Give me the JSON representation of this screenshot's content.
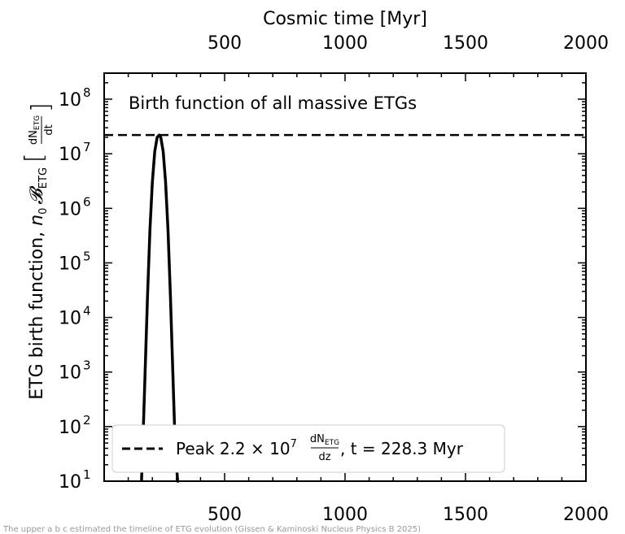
{
  "chart_data": {
    "type": "line",
    "title": "Birth function of all massive ETGs",
    "xlabel_top": "Cosmic time [Myr]",
    "ylabel": "ETG birth function, n₀ 𝓑ETG [dNETG/dt]",
    "ylabel_parts": {
      "main": "ETG birth function, ",
      "n": "n",
      "n_sub": "0",
      "B": "𝓑",
      "B_sub": "ETG",
      "frac_num": "dN",
      "frac_num_sub": "ETG",
      "frac_den": "dt"
    },
    "xlim": [
      0,
      2000
    ],
    "x_ticks": [
      "500",
      "1000",
      "1500",
      "2000"
    ],
    "x_tick_values": [
      500,
      1000,
      1500,
      2000
    ],
    "ylim": [
      10,
      300000000
    ],
    "yscale": "log",
    "y_ticks": [
      {
        "base": "10",
        "exp": "1",
        "value": 10
      },
      {
        "base": "10",
        "exp": "2",
        "value": 100
      },
      {
        "base": "10",
        "exp": "3",
        "value": 1000
      },
      {
        "base": "10",
        "exp": "4",
        "value": 10000
      },
      {
        "base": "10",
        "exp": "5",
        "value": 100000
      },
      {
        "base": "10",
        "exp": "6",
        "value": 1000000
      },
      {
        "base": "10",
        "exp": "7",
        "value": 10000000
      },
      {
        "base": "10",
        "exp": "8",
        "value": 100000000
      }
    ],
    "series": [
      {
        "style": "solid",
        "color": "#000000",
        "x": [
          155,
          160,
          170,
          180,
          190,
          200,
          210,
          220,
          228.3,
          235,
          245,
          255,
          265,
          275,
          285,
          295,
          305,
          310
        ],
        "y": [
          8,
          40,
          1000,
          25000,
          400000,
          3000000,
          11000000,
          20000000,
          22000000,
          20000000,
          11000000,
          3000000,
          400000,
          25000,
          1000,
          40,
          8,
          3
        ]
      },
      {
        "style": "dashed",
        "color": "#000000",
        "x": [
          0,
          2000
        ],
        "y": [
          22000000,
          22000000
        ]
      }
    ],
    "legend": {
      "position": "lower right",
      "label_prefix": "Peak 2.2 × 10",
      "label_exp": "7",
      "frac_num": "dN",
      "frac_num_sub": "ETG",
      "frac_den": "dz",
      "label_suffix": ", t = 228.3 Myr"
    },
    "grid": false
  },
  "caption": "The upper a b c estimated the timeline of ETG evolution (Gissen & Kaminoski Nucleus Physics B 2025)"
}
